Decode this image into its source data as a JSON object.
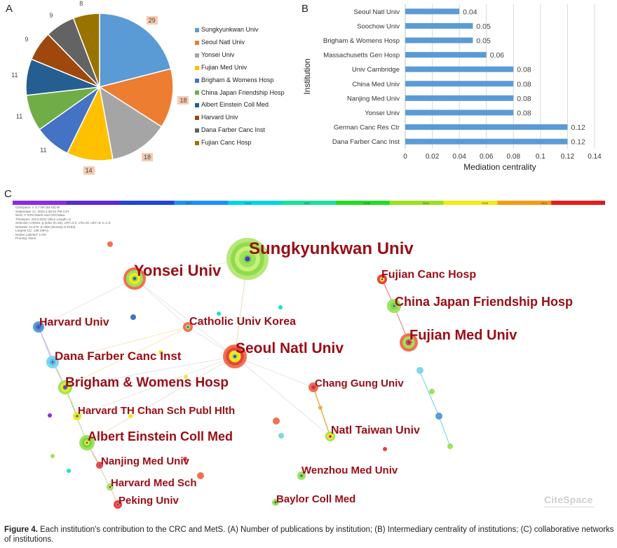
{
  "panels": {
    "a": "A",
    "b": "B",
    "c": "C"
  },
  "pie": {
    "items": [
      {
        "name": "Sungkyunkwan Univ",
        "value": 29,
        "color": "#5b9bd5"
      },
      {
        "name": "Seoul Natl Univ",
        "value": 18,
        "color": "#ed7d31"
      },
      {
        "name": "Yonsei Univ",
        "value": 18,
        "color": "#a5a5a5"
      },
      {
        "name": "Fujian Med Univ",
        "value": 14,
        "color": "#ffc000"
      },
      {
        "name": "Brigham & Womens Hosp",
        "value": 11,
        "color": "#4472c4"
      },
      {
        "name": "China Japan Friendship Hosp",
        "value": 11,
        "color": "#70ad47"
      },
      {
        "name": "Albert Einstein Coll Med",
        "value": 11,
        "color": "#255e91"
      },
      {
        "name": "Harvard Univ",
        "value": 9,
        "color": "#9e480e"
      },
      {
        "name": "Dana Farber Canc Inst",
        "value": 9,
        "color": "#636363"
      },
      {
        "name": "Fujian Canc Hosp",
        "value": 8,
        "color": "#997300"
      }
    ]
  },
  "chart_data": {
    "type": "bar",
    "orientation": "horizontal",
    "categories": [
      "Seoul Natl Univ",
      "Soochow Univ",
      "Brigham & Womens Hosp",
      "Massachusetts Gen Hosp",
      "Univ Cambridge",
      "China Med Univ",
      "Nanjing Med Univ",
      "Yonsei Univ",
      "German Canc Res Ctr",
      "Dana Farber Canc Inst"
    ],
    "values": [
      0.04,
      0.05,
      0.05,
      0.06,
      0.08,
      0.08,
      0.08,
      0.08,
      0.12,
      0.12
    ],
    "value_labels": [
      "0.04",
      "0.05",
      "0.05",
      "0.06",
      "0.08",
      "0.08",
      "0.08",
      "0.08",
      "0.12",
      "0.12"
    ],
    "xlabel": "Mediation centrality",
    "ylabel": "Institution",
    "xlim": [
      0,
      0.14
    ],
    "xticks": [
      "0",
      "0.02",
      "0.04",
      "0.06",
      "0.08",
      "0.1",
      "0.12",
      "0.14"
    ],
    "bar_color": "#5b9bd5",
    "grid": true
  },
  "network": {
    "timeline": [
      "2013",
      "2014",
      "2015",
      "2016",
      "2017",
      "2018",
      "2019",
      "2020",
      "2021",
      "2022"
    ],
    "meta_lines": [
      "CiteSpace, v. 5.7.R5 (64-bit) W",
      "September 17, 2023 3:28:54 PM CST",
      "WoS: F:\\CRC\\MetS and CRC\\data",
      "Timespan: 2013-2022 (Slice Length=1)",
      "Selection Criteria: g-index (k=25), LRF=3.0, L/N=10, LBY=5, e=1.0",
      "Network: N=279, E=595 (Density=0.0153)",
      "Largest CC: 138 (49%)",
      "Nodes Labeled: 1.0%",
      "Pruning: None"
    ],
    "labels": [
      "Sungkyunkwan Univ",
      "Yonsei Univ",
      "Fujian Canc Hosp",
      "China Japan Friendship Hosp",
      "Harvard Univ",
      "Catholic Univ Korea",
      "Fujian Med Univ",
      "Seoul Natl Univ",
      "Dana Farber Canc Inst",
      "Brigham & Womens Hosp",
      "Chang Gung Univ",
      "Harvard TH Chan Sch Publ Hlth",
      "Natl Taiwan Univ",
      "Albert Einstein Coll Med",
      "Nanjing Med Univ",
      "Wenzhou Med Univ",
      "Harvard Med Sch",
      "Baylor Coll Med",
      "Peking Univ"
    ],
    "logo": "CiteSpace"
  },
  "caption": {
    "figure_label": "Figure 4.",
    "text": " Each institution's contribution to the CRC and MetS. (A) Number of publications by institution; (B) Intermediary centrality of institutions; (C) collaborative networks of institutions."
  }
}
